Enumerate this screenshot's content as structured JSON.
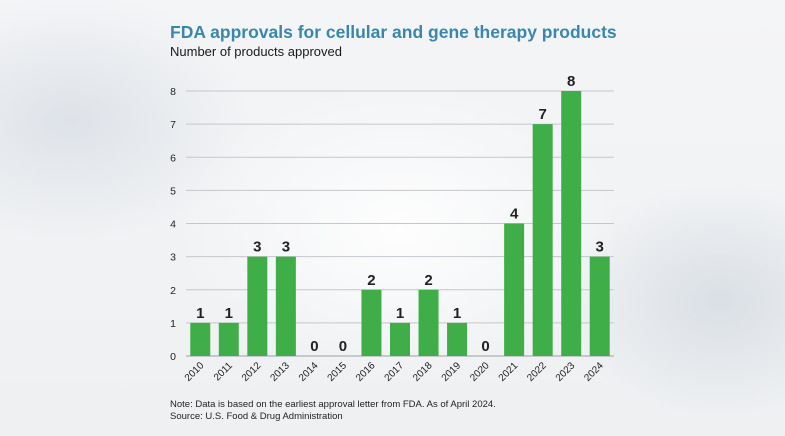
{
  "header": {
    "title": "FDA approvals for cellular and gene therapy products",
    "subtitle": "Number of products approved"
  },
  "footer": {
    "note": "Note: Data is based on the earliest approval letter from FDA. As of April 2024.",
    "source": "Source: U.S. Food & Drug Administration"
  },
  "colors": {
    "bar": "#3fae49",
    "title": "#3a87ad",
    "grid": "#c4c8cc"
  },
  "chart_data": {
    "type": "bar",
    "categories": [
      "2010",
      "2011",
      "2012",
      "2013",
      "2014",
      "2015",
      "2016",
      "2017",
      "2018",
      "2019",
      "2020",
      "2021",
      "2022",
      "2023",
      "2024"
    ],
    "values": [
      1,
      1,
      3,
      3,
      0,
      0,
      2,
      1,
      2,
      1,
      0,
      4,
      7,
      8,
      3
    ],
    "data_labels": [
      "1",
      "1",
      "3",
      "3",
      "0",
      "0",
      "2",
      "1",
      "2",
      "1",
      "0",
      "4",
      "7",
      "8",
      "3"
    ],
    "title": "FDA approvals for cellular and gene therapy products",
    "ylabel": "Number of products approved",
    "ylim": [
      0,
      8
    ],
    "yticks": [
      0,
      1,
      2,
      3,
      4,
      5,
      6,
      7,
      8
    ],
    "grid": true
  }
}
